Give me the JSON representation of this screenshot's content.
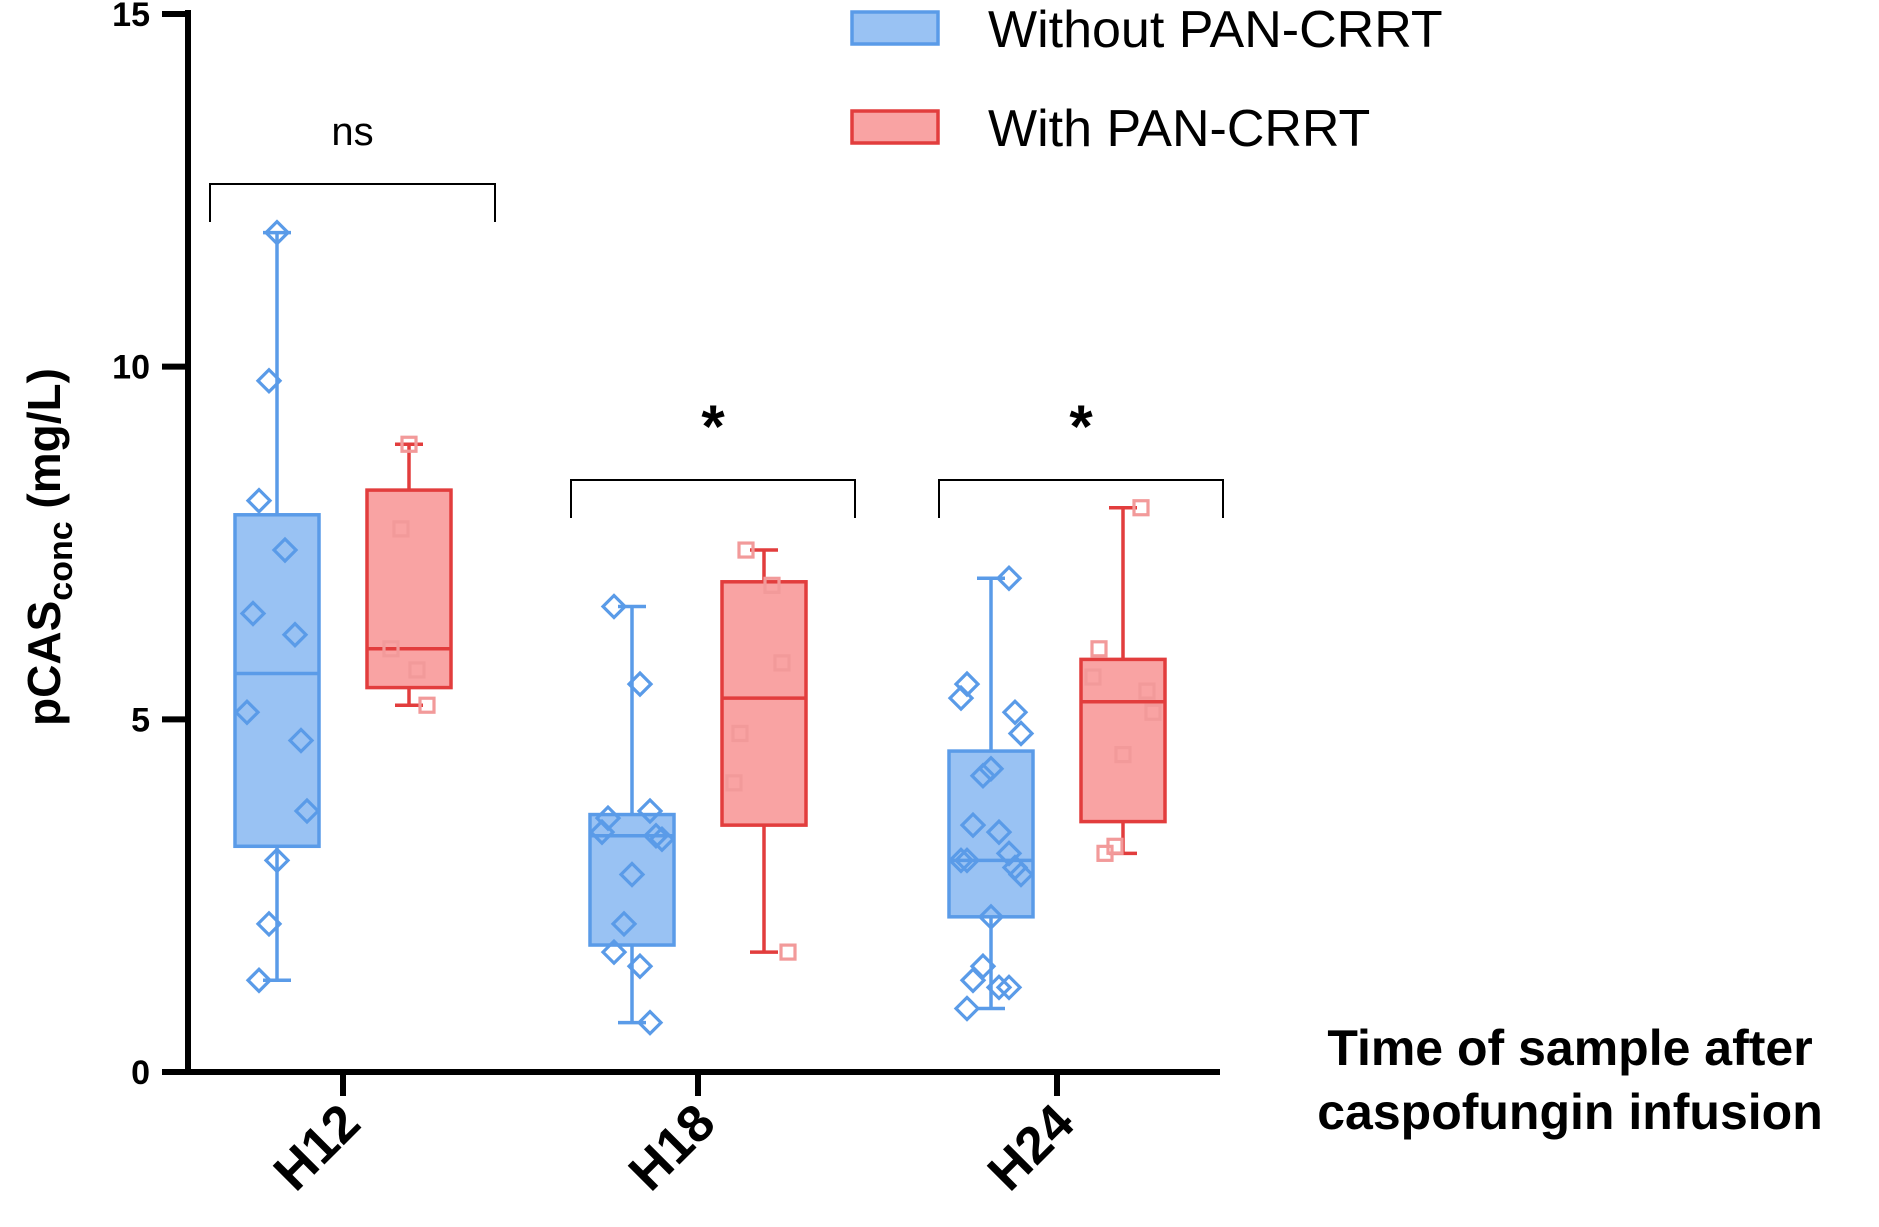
{
  "chart_data": {
    "type": "box",
    "ylabel_main": "pCAS",
    "ylabel_sub": "conc",
    "ylabel_unit": " (mg/L)",
    "xlabel_line1": "Time of sample after",
    "xlabel_line2": "caspofungin infusion",
    "ylim": [
      0,
      15
    ],
    "yticks": [
      "0",
      "5",
      "10",
      "15"
    ],
    "categories": [
      "H12",
      "H18",
      "H24"
    ],
    "legend": {
      "position": "top-right"
    },
    "series": [
      {
        "name": "Without PAN-CRRT",
        "color": "#5a9be8",
        "fill": "#99c2f3",
        "marker": "diamond",
        "boxes": [
          {
            "min": 1.3,
            "q1": 3.2,
            "median": 5.65,
            "q3": 7.9,
            "max": 11.9,
            "points": [
              11.9,
              9.8,
              8.1,
              7.4,
              6.2,
              6.5,
              5.1,
              4.7,
              3.7,
              3.0,
              2.1,
              1.3
            ]
          },
          {
            "min": 0.7,
            "q1": 1.8,
            "median": 3.35,
            "q3": 3.65,
            "max": 6.6,
            "points": [
              6.6,
              5.5,
              3.7,
              3.6,
              3.4,
              3.35,
              3.3,
              2.8,
              2.1,
              1.7,
              1.5,
              0.7
            ]
          },
          {
            "min": 0.9,
            "q1": 2.2,
            "median": 3.0,
            "q3": 4.55,
            "max": 7.0,
            "points": [
              7.0,
              5.5,
              5.3,
              5.1,
              4.8,
              4.3,
              4.2,
              3.5,
              3.4,
              3.1,
              3.0,
              3.0,
              2.9,
              2.8,
              2.2,
              1.5,
              1.3,
              1.2,
              1.2,
              0.9
            ]
          }
        ]
      },
      {
        "name": "With PAN-CRRT",
        "color": "#e23d3d",
        "fill": "#f9a3a3",
        "marker": "square",
        "boxes": [
          {
            "min": 5.2,
            "q1": 5.45,
            "median": 6.0,
            "q3": 8.25,
            "max": 8.9,
            "points": [
              8.9,
              7.7,
              6.0,
              5.7,
              5.2
            ]
          },
          {
            "min": 1.7,
            "q1": 3.5,
            "median": 5.3,
            "q3": 6.95,
            "max": 7.4,
            "points": [
              7.4,
              6.9,
              5.8,
              4.8,
              4.1,
              1.7
            ]
          },
          {
            "min": 3.1,
            "q1": 3.55,
            "median": 5.25,
            "q3": 5.85,
            "max": 8.0,
            "points": [
              8.0,
              6.0,
              5.6,
              5.4,
              5.1,
              4.5,
              3.2,
              3.1
            ]
          }
        ]
      }
    ],
    "significance": [
      {
        "category": "H12",
        "label": "ns"
      },
      {
        "category": "H18",
        "label": "*"
      },
      {
        "category": "H24",
        "label": "*"
      }
    ]
  }
}
